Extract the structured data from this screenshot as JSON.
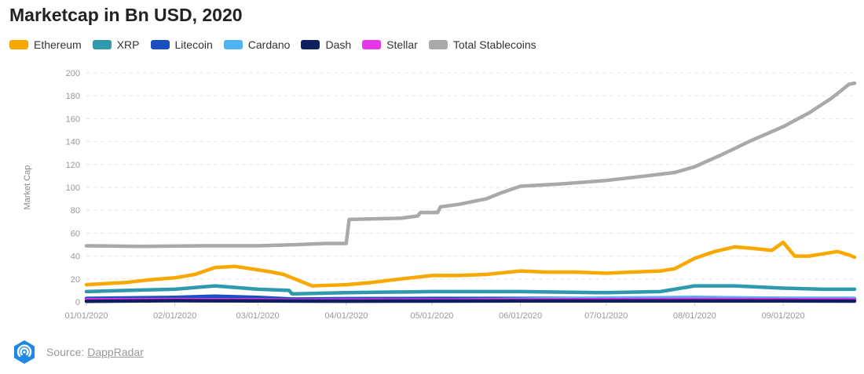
{
  "title": "Marketcap in Bn USD, 2020",
  "source": {
    "prefix": "Source:",
    "link": "DappRadar"
  },
  "chart_data": {
    "type": "line",
    "title": "Marketcap in Bn USD, 2020",
    "xlabel": "",
    "ylabel": "Market Cap",
    "ylim": [
      0,
      200
    ],
    "yticks": [
      0,
      20,
      40,
      60,
      80,
      100,
      120,
      140,
      160,
      180,
      200
    ],
    "xlim": [
      "01/01/2020",
      "09/26/2020"
    ],
    "xticks": [
      "01/01/2020",
      "02/01/2020",
      "03/01/2020",
      "04/01/2020",
      "05/01/2020",
      "06/01/2020",
      "07/01/2020",
      "08/01/2020",
      "09/01/2020"
    ],
    "grid": true,
    "legend": "top-left",
    "series": [
      {
        "name": "Ethereum",
        "color": "#f9a800",
        "x": [
          "01/01/2020",
          "01/08/2020",
          "01/15/2020",
          "01/22/2020",
          "02/01/2020",
          "02/08/2020",
          "02/15/2020",
          "02/22/2020",
          "03/01/2020",
          "03/06/2020",
          "03/10/2020",
          "03/13/2020",
          "03/20/2020",
          "04/01/2020",
          "04/10/2020",
          "04/20/2020",
          "05/01/2020",
          "05/10/2020",
          "05/20/2020",
          "06/01/2020",
          "06/10/2020",
          "06/20/2020",
          "07/01/2020",
          "07/10/2020",
          "07/20/2020",
          "07/25/2020",
          "08/01/2020",
          "08/08/2020",
          "08/15/2020",
          "08/20/2020",
          "08/28/2020",
          "09/01/2020",
          "09/03/2020",
          "09/05/2020",
          "09/10/2020",
          "09/15/2020",
          "09/20/2020",
          "09/24/2020",
          "09/26/2020"
        ],
        "y": [
          15,
          16,
          17,
          19,
          21,
          24,
          30,
          31,
          28,
          26,
          24,
          21,
          14,
          15,
          17,
          20,
          23,
          23,
          24,
          27,
          26,
          26,
          25,
          26,
          27,
          29,
          38,
          44,
          48,
          47,
          45,
          52,
          46,
          40,
          40,
          42,
          44,
          41,
          39
        ]
      },
      {
        "name": "XRP",
        "color": "#2f9aad",
        "x": [
          "01/01/2020",
          "01/15/2020",
          "02/01/2020",
          "02/15/2020",
          "03/01/2020",
          "03/12/2020",
          "03/13/2020",
          "04/01/2020",
          "05/01/2020",
          "06/01/2020",
          "07/01/2020",
          "07/20/2020",
          "08/01/2020",
          "08/15/2020",
          "09/01/2020",
          "09/15/2020",
          "09/26/2020"
        ],
        "y": [
          9,
          10,
          11,
          14,
          11,
          10,
          7,
          8,
          9,
          9,
          8,
          9,
          14,
          14,
          12,
          11,
          11
        ]
      },
      {
        "name": "Litecoin",
        "color": "#1a4fc0",
        "x": [
          "01/01/2020",
          "02/01/2020",
          "02/15/2020",
          "03/01/2020",
          "03/13/2020",
          "04/01/2020",
          "05/01/2020",
          "06/01/2020",
          "07/01/2020",
          "08/01/2020",
          "09/01/2020",
          "09/26/2020"
        ],
        "y": [
          3,
          4,
          5,
          4,
          2.5,
          2.8,
          3,
          3,
          3,
          3.5,
          3,
          3
        ]
      },
      {
        "name": "Cardano",
        "color": "#4db5f5",
        "x": [
          "01/01/2020",
          "02/01/2020",
          "03/01/2020",
          "03/13/2020",
          "04/01/2020",
          "05/01/2020",
          "06/01/2020",
          "07/01/2020",
          "08/01/2020",
          "09/01/2020",
          "09/26/2020"
        ],
        "y": [
          1,
          1.5,
          1.3,
          0.8,
          0.9,
          1.3,
          2.2,
          3.2,
          4,
          3,
          3
        ]
      },
      {
        "name": "Dash",
        "color": "#0d1f5c",
        "x": [
          "01/01/2020",
          "02/01/2020",
          "03/01/2020",
          "04/01/2020",
          "05/01/2020",
          "06/01/2020",
          "07/01/2020",
          "08/01/2020",
          "09/01/2020",
          "09/26/2020"
        ],
        "y": [
          0.5,
          1,
          0.8,
          0.6,
          0.7,
          0.8,
          0.8,
          0.9,
          0.8,
          0.7
        ]
      },
      {
        "name": "Stellar",
        "color": "#e837e8",
        "x": [
          "01/01/2020",
          "02/01/2020",
          "03/01/2020",
          "03/13/2020",
          "04/01/2020",
          "05/01/2020",
          "06/01/2020",
          "07/01/2020",
          "08/01/2020",
          "09/01/2020",
          "09/26/2020"
        ],
        "y": [
          1.8,
          2,
          1.8,
          1.4,
          1.5,
          1.6,
          1.7,
          2,
          2.2,
          2,
          2
        ]
      },
      {
        "name": "Total Stablecoins",
        "color": "#a9a9a9",
        "x": [
          "01/01/2020",
          "01/20/2020",
          "02/10/2020",
          "03/01/2020",
          "03/15/2020",
          "03/25/2020",
          "04/01/2020",
          "04/02/2020",
          "04/20/2020",
          "04/26/2020",
          "04/27/2020",
          "05/03/2020",
          "05/04/2020",
          "05/10/2020",
          "05/20/2020",
          "05/25/2020",
          "06/01/2020",
          "06/15/2020",
          "07/01/2020",
          "07/15/2020",
          "07/25/2020",
          "08/01/2020",
          "08/10/2020",
          "08/20/2020",
          "09/01/2020",
          "09/10/2020",
          "09/18/2020",
          "09/24/2020",
          "09/26/2020"
        ],
        "y": [
          49,
          48.5,
          49,
          49,
          50,
          51,
          51,
          72,
          73,
          75,
          78,
          78,
          83,
          85,
          90,
          95,
          101,
          103,
          106,
          110,
          113,
          118,
          128,
          140,
          153,
          165,
          178,
          190,
          191
        ]
      }
    ]
  }
}
